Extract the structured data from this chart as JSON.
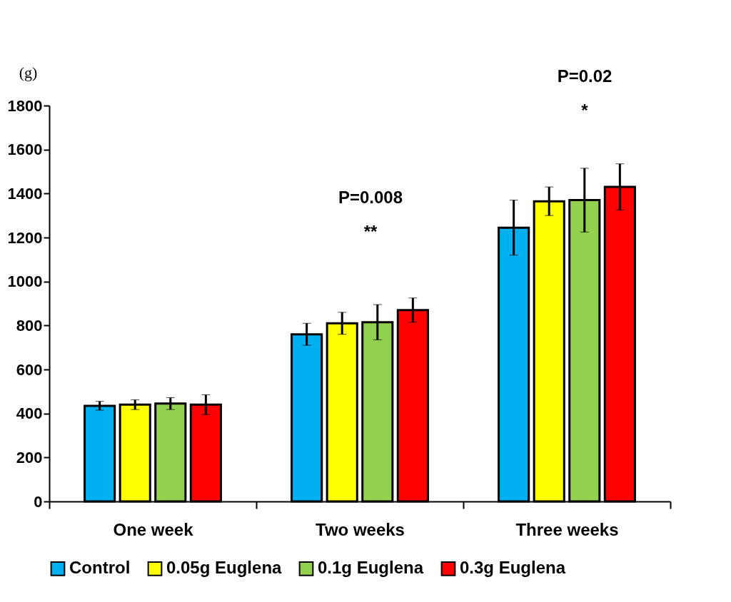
{
  "chart_data": {
    "type": "bar",
    "ylabel": "(g)",
    "categories": [
      "One week",
      "Two weeks",
      "Three weeks"
    ],
    "series": [
      {
        "name": "Control",
        "color": "#00b0f0",
        "values": [
          435,
          760,
          1245
        ],
        "errors": [
          20,
          50,
          125
        ]
      },
      {
        "name": "0.05g Euglena",
        "color": "#ffff00",
        "values": [
          440,
          810,
          1365
        ],
        "errors": [
          22,
          50,
          65
        ]
      },
      {
        "name": "0.1g Euglena",
        "color": "#92d050",
        "values": [
          445,
          815,
          1370
        ],
        "errors": [
          27,
          80,
          145
        ]
      },
      {
        "name": "0.3g Euglena",
        "color": "#ff0000",
        "values": [
          440,
          870,
          1430
        ],
        "errors": [
          45,
          55,
          105
        ]
      }
    ],
    "ylim": [
      0,
      1800
    ],
    "yticks": [
      0,
      200,
      400,
      600,
      800,
      1000,
      1200,
      1400,
      1600,
      1800
    ],
    "annotations": [
      "P=0.008",
      "**",
      "P=0.02",
      "*"
    ],
    "grid": false,
    "legend": "bottom"
  }
}
